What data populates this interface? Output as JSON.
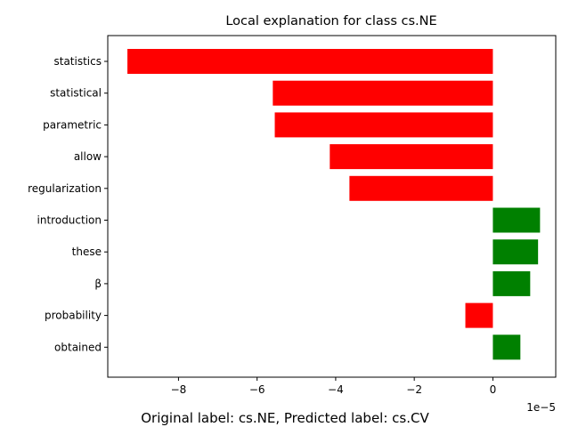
{
  "chart_data": {
    "type": "bar",
    "orientation": "horizontal",
    "title": "Local explanation for class cs.NE",
    "xlabel": "",
    "ylabel": "",
    "caption": "Original label: cs.NE, Predicted label: cs.CV",
    "x_offset_text": "1e−5",
    "categories": [
      "statistics",
      "statistical",
      "parametric",
      "allow",
      "regularization",
      "introduction",
      "these",
      "β",
      "probability",
      "obtained"
    ],
    "values": [
      -9.3e-05,
      -5.6e-05,
      -5.55e-05,
      -4.15e-05,
      -3.65e-05,
      1.2e-05,
      1.15e-05,
      9.5e-06,
      -7e-06,
      7e-06
    ],
    "xlim": [
      -9.8e-05,
      1.6e-05
    ],
    "x_ticks": [
      -8e-05,
      -6e-05,
      -4e-05,
      -2e-05,
      0
    ],
    "x_tick_labels": [
      "−8",
      "−6",
      "−4",
      "−2",
      "0"
    ],
    "colors": {
      "negative": "#ff0000",
      "positive": "#008000"
    },
    "grid": false,
    "legend": "none"
  }
}
